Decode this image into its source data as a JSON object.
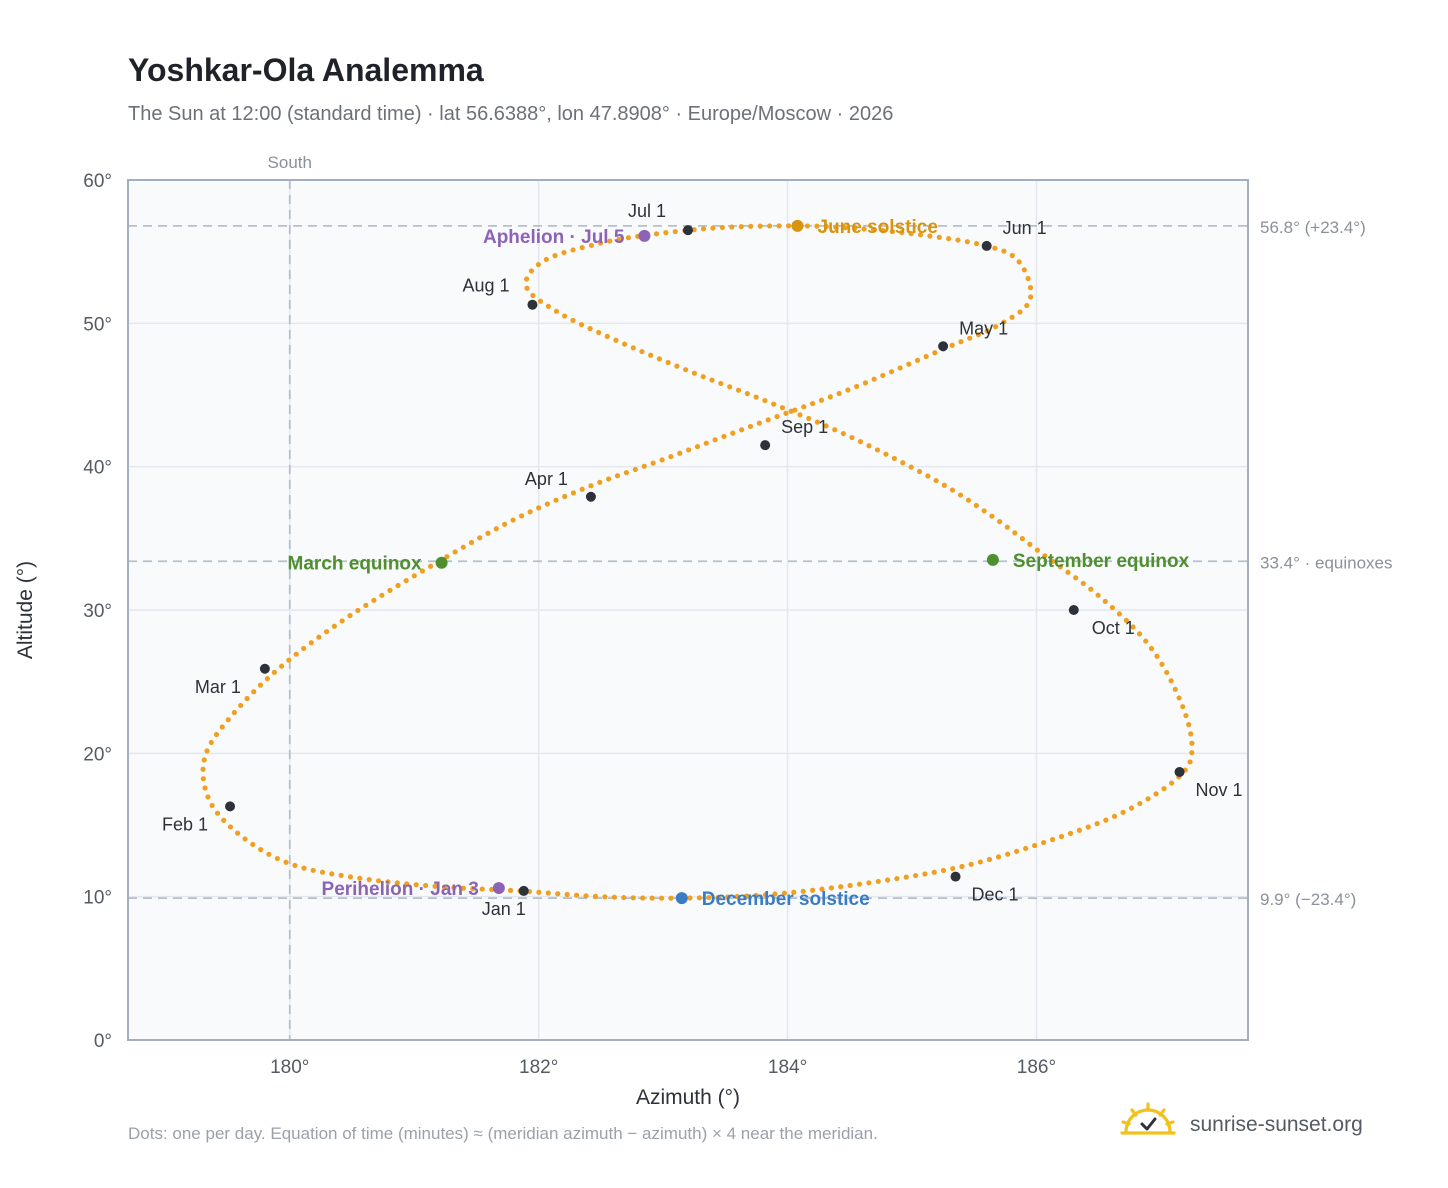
{
  "header": {
    "title": "Yoshkar-Ola Analemma",
    "subtitle": "The Sun at 12:00 (standard time) · lat 56.6388°, lon 47.8908° · Europe/Moscow · 2026"
  },
  "footer": {
    "note": "Dots: one per day. Equation of time (minutes) ≈ (meridian azimuth − azimuth) × 4 near the meridian.",
    "brand": "sunrise-sunset.org"
  },
  "colors": {
    "curve": "#f0a020",
    "month_marker": "#2d323a",
    "solstice_june": "#d8940e",
    "solstice_december": "#3a7cc4",
    "equinox": "#4f8f2f",
    "apsis": "#8c63b5",
    "reference_line": "#b5c0cc",
    "plot_bg": "#f8fafc",
    "frame": "#a3afbc",
    "brand_sun": "#f2c21a"
  },
  "chart_data": {
    "type": "scatter",
    "xlabel": "Azimuth (°)",
    "ylabel": "Altitude (°)",
    "xlim": [
      178.7,
      187.7
    ],
    "ylim": [
      0,
      60
    ],
    "xticks": [
      180,
      182,
      184,
      186
    ],
    "xtick_labels": [
      "180°",
      "182°",
      "184°",
      "186°"
    ],
    "yticks": [
      0,
      10,
      20,
      30,
      40,
      50,
      60
    ],
    "ytick_labels": [
      "0°",
      "10°",
      "20°",
      "30°",
      "40°",
      "50°",
      "60°"
    ],
    "grid": true,
    "meridian": {
      "azimuth": 180,
      "label": "South"
    },
    "reference_lines": [
      {
        "altitude": 56.8,
        "label": "56.8° (+23.4°)"
      },
      {
        "altitude": 33.4,
        "label": "33.4° · equinoxes"
      },
      {
        "altitude": 9.9,
        "label": "9.9° (−23.4°)"
      }
    ],
    "analemma_points": [
      [
        181.85,
        10.4
      ],
      [
        181.2,
        10.7
      ],
      [
        180.55,
        11.3
      ],
      [
        180.0,
        12.3
      ],
      [
        179.6,
        14.3
      ],
      [
        179.35,
        16.8
      ],
      [
        179.32,
        19.8
      ],
      [
        179.55,
        22.8
      ],
      [
        179.95,
        26.2
      ],
      [
        180.5,
        29.7
      ],
      [
        181.2,
        33.4
      ],
      [
        181.8,
        36.3
      ],
      [
        182.4,
        38.6
      ],
      [
        183.0,
        40.5
      ],
      [
        183.7,
        42.8
      ],
      [
        184.5,
        45.4
      ],
      [
        185.25,
        48.2
      ],
      [
        185.7,
        49.9
      ],
      [
        185.95,
        51.7
      ],
      [
        185.85,
        54.4
      ],
      [
        185.55,
        55.5
      ],
      [
        185.0,
        56.25
      ],
      [
        184.5,
        56.65
      ],
      [
        184.1,
        56.8
      ],
      [
        183.5,
        56.7
      ],
      [
        182.95,
        56.25
      ],
      [
        182.5,
        55.6
      ],
      [
        182.05,
        54.4
      ],
      [
        181.9,
        52.6
      ],
      [
        182.15,
        50.8
      ],
      [
        182.6,
        48.9
      ],
      [
        183.2,
        46.7
      ],
      [
        183.85,
        44.5
      ],
      [
        184.5,
        42.1
      ],
      [
        185.2,
        39.0
      ],
      [
        185.65,
        36.5
      ],
      [
        186.05,
        33.9
      ],
      [
        186.5,
        31.0
      ],
      [
        186.9,
        27.6
      ],
      [
        187.15,
        23.8
      ],
      [
        187.25,
        20.5
      ],
      [
        187.15,
        18.4
      ],
      [
        186.7,
        15.9
      ],
      [
        186.1,
        13.9
      ],
      [
        185.4,
        12.1
      ],
      [
        184.6,
        10.9
      ],
      [
        183.85,
        10.15
      ],
      [
        183.15,
        9.9
      ],
      [
        182.5,
        10.0
      ],
      [
        181.85,
        10.4
      ]
    ],
    "month_markers": [
      {
        "label": "Jan 1",
        "az": 181.88,
        "alt": 10.4
      },
      {
        "label": "Feb 1",
        "az": 179.52,
        "alt": 16.3
      },
      {
        "label": "Mar 1",
        "az": 179.8,
        "alt": 25.9
      },
      {
        "label": "Apr 1",
        "az": 182.42,
        "alt": 37.9
      },
      {
        "label": "May 1",
        "az": 185.25,
        "alt": 48.4
      },
      {
        "label": "Jun 1",
        "az": 185.6,
        "alt": 55.4
      },
      {
        "label": "Jul 1",
        "az": 183.2,
        "alt": 56.5
      },
      {
        "label": "Aug 1",
        "az": 181.95,
        "alt": 51.3
      },
      {
        "label": "Sep 1",
        "az": 183.82,
        "alt": 41.5
      },
      {
        "label": "Oct 1",
        "az": 186.3,
        "alt": 30.0
      },
      {
        "label": "Nov 1",
        "az": 187.15,
        "alt": 18.7
      },
      {
        "label": "Dec 1",
        "az": 185.35,
        "alt": 11.4
      }
    ],
    "events": [
      {
        "label": "June solstice",
        "az": 184.08,
        "alt": 56.8,
        "kind": "solstice_june"
      },
      {
        "label": "December solstice",
        "az": 183.15,
        "alt": 9.9,
        "kind": "solstice_december"
      },
      {
        "label": "March equinox",
        "az": 181.22,
        "alt": 33.3,
        "kind": "equinox"
      },
      {
        "label": "September equinox",
        "az": 185.65,
        "alt": 33.5,
        "kind": "equinox"
      },
      {
        "label": "Aphelion · Jul 5",
        "az": 182.85,
        "alt": 56.1,
        "kind": "apsis"
      },
      {
        "label": "Perihelion · Jan 3",
        "az": 181.68,
        "alt": 10.6,
        "kind": "apsis"
      }
    ]
  }
}
